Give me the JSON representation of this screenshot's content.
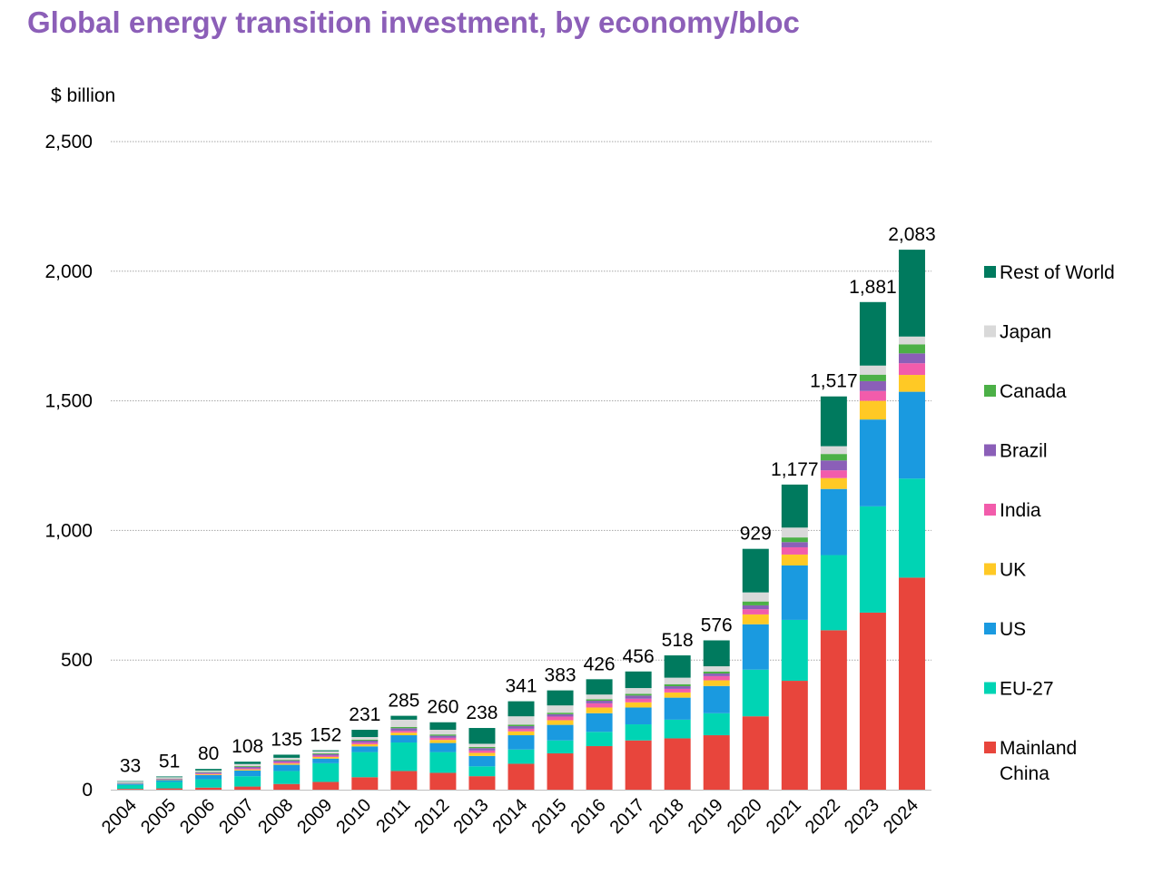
{
  "title": "Global energy transition investment, by economy/bloc",
  "chart_data": {
    "type": "bar",
    "stacked": true,
    "title": "Global energy transition investment, by economy/bloc",
    "ylabel": "$ billion",
    "xlabel": "",
    "ylim": [
      0,
      2500
    ],
    "yticks": [
      0,
      500,
      1000,
      1500,
      2000,
      2500
    ],
    "ytick_labels": [
      "0",
      "500",
      "1,000",
      "1,500",
      "2,000",
      "2,500"
    ],
    "grid": true,
    "legend_position": "right",
    "categories": [
      "2004",
      "2005",
      "2006",
      "2007",
      "2008",
      "2009",
      "2010",
      "2011",
      "2012",
      "2013",
      "2014",
      "2015",
      "2016",
      "2017",
      "2018",
      "2019",
      "2020",
      "2021",
      "2022",
      "2023",
      "2024"
    ],
    "totals": [
      33,
      51,
      80,
      108,
      135,
      152,
      231,
      285,
      260,
      238,
      341,
      383,
      426,
      456,
      518,
      576,
      929,
      1177,
      1517,
      1881,
      2083
    ],
    "total_labels": [
      "33",
      "51",
      "80",
      "108",
      "135",
      "152",
      "231",
      "285",
      "260",
      "238",
      "341",
      "383",
      "426",
      "456",
      "518",
      "576",
      "929",
      "1,177",
      "1,517",
      "1,881",
      "2,083"
    ],
    "series": [
      {
        "name": "Mainland China",
        "color": "#e8453c",
        "values": [
          3,
          5,
          8,
          12,
          22,
          30,
          48,
          72,
          65,
          52,
          100,
          140,
          168,
          190,
          198,
          210,
          283,
          420,
          615,
          683,
          818
        ]
      },
      {
        "name": "EU-27",
        "color": "#00d4b4",
        "values": [
          15,
          25,
          32,
          40,
          50,
          72,
          97,
          110,
          80,
          38,
          55,
          50,
          55,
          62,
          72,
          85,
          180,
          235,
          290,
          410,
          382
        ]
      },
      {
        "name": "US",
        "color": "#1a9ae0",
        "values": [
          5,
          7,
          16,
          22,
          24,
          18,
          22,
          28,
          35,
          40,
          55,
          60,
          72,
          65,
          85,
          105,
          175,
          210,
          255,
          335,
          335
        ]
      },
      {
        "name": "UK",
        "color": "#ffc925",
        "values": [
          1,
          2,
          3,
          4,
          5,
          6,
          8,
          10,
          12,
          12,
          15,
          18,
          22,
          20,
          20,
          22,
          38,
          42,
          42,
          72,
          65
        ]
      },
      {
        "name": "India",
        "color": "#f25cab",
        "values": [
          1,
          1,
          3,
          4,
          5,
          5,
          6,
          7,
          8,
          9,
          10,
          14,
          16,
          14,
          14,
          16,
          20,
          28,
          30,
          38,
          45
        ]
      },
      {
        "name": "Brazil",
        "color": "#8b5fb8",
        "values": [
          1,
          2,
          4,
          6,
          6,
          6,
          8,
          10,
          8,
          9,
          10,
          9,
          10,
          12,
          10,
          10,
          15,
          20,
          38,
          38,
          38
        ]
      },
      {
        "name": "Canada",
        "color": "#4cb047",
        "values": [
          1,
          1,
          2,
          3,
          3,
          3,
          4,
          5,
          5,
          5,
          6,
          6,
          6,
          7,
          8,
          8,
          15,
          18,
          25,
          25,
          35
        ]
      },
      {
        "name": "Japan",
        "color": "#d9d9d9",
        "values": [
          4,
          5,
          6,
          8,
          8,
          8,
          10,
          28,
          18,
          12,
          32,
          28,
          18,
          22,
          25,
          20,
          35,
          38,
          30,
          35,
          30
        ]
      },
      {
        "name": "Rest of World",
        "color": "#007a5e",
        "values": [
          2,
          3,
          6,
          9,
          12,
          4,
          28,
          15,
          29,
          61,
          58,
          58,
          59,
          64,
          86,
          100,
          168,
          166,
          192,
          245,
          335
        ]
      }
    ]
  }
}
